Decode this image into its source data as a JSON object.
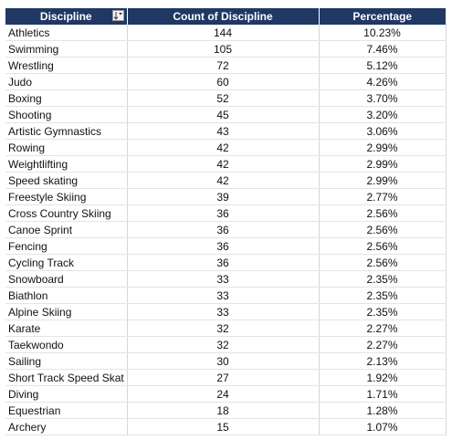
{
  "headers": {
    "discipline": "Discipline",
    "count": "Count of Discipline",
    "percentage": "Percentage"
  },
  "filter_icon": "sort-filter-icon",
  "rows": [
    {
      "discipline": "Athletics",
      "count": "144",
      "percentage": "10.23%"
    },
    {
      "discipline": "Swimming",
      "count": "105",
      "percentage": "7.46%"
    },
    {
      "discipline": "Wrestling",
      "count": "72",
      "percentage": "5.12%"
    },
    {
      "discipline": "Judo",
      "count": "60",
      "percentage": "4.26%"
    },
    {
      "discipline": "Boxing",
      "count": "52",
      "percentage": "3.70%"
    },
    {
      "discipline": "Shooting",
      "count": "45",
      "percentage": "3.20%"
    },
    {
      "discipline": "Artistic Gymnastics",
      "count": "43",
      "percentage": "3.06%"
    },
    {
      "discipline": "Rowing",
      "count": "42",
      "percentage": "2.99%"
    },
    {
      "discipline": "Weightlifting",
      "count": "42",
      "percentage": "2.99%"
    },
    {
      "discipline": "Speed skating",
      "count": "42",
      "percentage": "2.99%"
    },
    {
      "discipline": "Freestyle Skiing",
      "count": "39",
      "percentage": "2.77%"
    },
    {
      "discipline": "Cross Country Skiing",
      "count": "36",
      "percentage": "2.56%"
    },
    {
      "discipline": "Canoe Sprint",
      "count": "36",
      "percentage": "2.56%"
    },
    {
      "discipline": "Fencing",
      "count": "36",
      "percentage": "2.56%"
    },
    {
      "discipline": "Cycling Track",
      "count": "36",
      "percentage": "2.56%"
    },
    {
      "discipline": "Snowboard",
      "count": "33",
      "percentage": "2.35%"
    },
    {
      "discipline": "Biathlon",
      "count": "33",
      "percentage": "2.35%"
    },
    {
      "discipline": "Alpine Skiing",
      "count": "33",
      "percentage": "2.35%"
    },
    {
      "discipline": "Karate",
      "count": "32",
      "percentage": "2.27%"
    },
    {
      "discipline": "Taekwondo",
      "count": "32",
      "percentage": "2.27%"
    },
    {
      "discipline": "Sailing",
      "count": "30",
      "percentage": "2.13%"
    },
    {
      "discipline": "Short Track Speed Skat",
      "count": "27",
      "percentage": "1.92%"
    },
    {
      "discipline": "Diving",
      "count": "24",
      "percentage": "1.71%"
    },
    {
      "discipline": "Equestrian",
      "count": "18",
      "percentage": "1.28%"
    },
    {
      "discipline": "Archery",
      "count": "15",
      "percentage": "1.07%"
    }
  ]
}
